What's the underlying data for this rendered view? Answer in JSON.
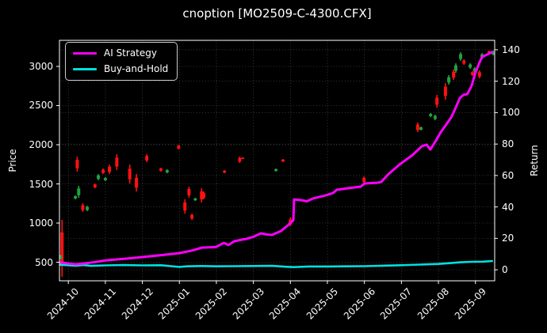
{
  "window": {
    "title": "cnoption [MO2509-C-4300.CFX]"
  },
  "legend": {
    "items": [
      {
        "label": "AI Strategy",
        "color": "#ff00ff"
      },
      {
        "label": "Buy-and-Hold",
        "color": "#00e0e0"
      }
    ]
  },
  "axes": {
    "left_label": "Price",
    "right_label": "Return",
    "price_ticks": [
      500,
      1000,
      1500,
      2000,
      2500,
      3000
    ],
    "return_ticks": [
      0,
      20,
      40,
      60,
      80,
      100,
      120,
      140
    ],
    "x_ticks": [
      "2024-10",
      "2024-11",
      "2024-12",
      "2025-01",
      "2025-02",
      "2025-03",
      "2025-04",
      "2025-05",
      "2025-06",
      "2025-07",
      "2025-08",
      "2025-09"
    ]
  },
  "chart_data": {
    "type": "line",
    "subtype": "equity-curves-with-candlestick-overlay",
    "title": "cnoption [MO2509-C-4300.CFX]",
    "xlabel": "",
    "x_unit": "months since 2024-10 (0 = 2024-10, 11 = 2025-09)",
    "x_tick_labels": [
      "2024-10",
      "2024-11",
      "2024-12",
      "2025-01",
      "2025-02",
      "2025-03",
      "2025-04",
      "2025-05",
      "2025-06",
      "2025-07",
      "2025-08",
      "2025-09"
    ],
    "x_range": [
      -0.24,
      11.52
    ],
    "left_axis": {
      "label": "Price",
      "ticks": [
        500,
        1000,
        1500,
        2000,
        2500,
        3000
      ],
      "range": [
        263,
        3333
      ]
    },
    "right_axis": {
      "label": "Return",
      "ticks": [
        0,
        20,
        40,
        60,
        80,
        100,
        120,
        140
      ],
      "range": [
        -7,
        146
      ]
    },
    "grid": true,
    "legend_position": "upper left",
    "series": [
      {
        "name": "AI Strategy",
        "axis": "right",
        "color": "#ff00ff",
        "points": [
          [
            -0.24,
            4.8
          ],
          [
            0.0,
            4.0
          ],
          [
            0.2,
            3.5
          ],
          [
            0.5,
            4.2
          ],
          [
            0.8,
            5.2
          ],
          [
            1.0,
            6.0
          ],
          [
            1.5,
            7.0
          ],
          [
            2.0,
            8.1
          ],
          [
            2.5,
            9.3
          ],
          [
            3.0,
            10.6
          ],
          [
            3.3,
            12.0
          ],
          [
            3.47,
            13.1
          ],
          [
            3.6,
            14.1
          ],
          [
            3.9,
            14.4
          ],
          [
            4.0,
            14.6
          ],
          [
            4.2,
            17.1
          ],
          [
            4.33,
            15.8
          ],
          [
            4.48,
            18.1
          ],
          [
            4.7,
            19.2
          ],
          [
            4.8,
            19.6
          ],
          [
            5.0,
            21.0
          ],
          [
            5.2,
            23.2
          ],
          [
            5.35,
            22.5
          ],
          [
            5.5,
            22.2
          ],
          [
            5.75,
            24.7
          ],
          [
            5.95,
            28.7
          ],
          [
            6.08,
            31.5
          ],
          [
            6.1,
            44.8
          ],
          [
            6.3,
            44.3
          ],
          [
            6.45,
            43.6
          ],
          [
            6.6,
            45.3
          ],
          [
            6.95,
            47.3
          ],
          [
            7.15,
            48.8
          ],
          [
            7.25,
            50.9
          ],
          [
            7.55,
            51.9
          ],
          [
            7.9,
            52.9
          ],
          [
            8.0,
            54.9
          ],
          [
            8.35,
            55.4
          ],
          [
            8.45,
            55.8
          ],
          [
            8.65,
            60.9
          ],
          [
            8.95,
            67.0
          ],
          [
            9.3,
            73.0
          ],
          [
            9.55,
            78.6
          ],
          [
            9.68,
            79.6
          ],
          [
            9.78,
            76.5
          ],
          [
            9.93,
            82.1
          ],
          [
            10.05,
            87.1
          ],
          [
            10.2,
            92.1
          ],
          [
            10.35,
            97.2
          ],
          [
            10.45,
            102.2
          ],
          [
            10.58,
            109.3
          ],
          [
            10.68,
            111.3
          ],
          [
            10.78,
            111.8
          ],
          [
            10.9,
            117.3
          ],
          [
            11.0,
            125.4
          ],
          [
            11.1,
            131.4
          ],
          [
            11.18,
            135.4
          ],
          [
            11.3,
            136.8
          ],
          [
            11.45,
            138.5
          ]
        ]
      },
      {
        "name": "Buy-and-Hold",
        "axis": "right",
        "color": "#00e0e0",
        "points": [
          [
            -0.24,
            3.2
          ],
          [
            0.2,
            2.6
          ],
          [
            0.4,
            3.0
          ],
          [
            0.6,
            2.5
          ],
          [
            1.0,
            2.8
          ],
          [
            1.5,
            3.0
          ],
          [
            2.0,
            2.8
          ],
          [
            2.5,
            2.9
          ],
          [
            3.0,
            1.8
          ],
          [
            3.2,
            2.2
          ],
          [
            3.6,
            2.4
          ],
          [
            4.0,
            2.2
          ],
          [
            4.5,
            2.3
          ],
          [
            5.0,
            2.4
          ],
          [
            5.5,
            2.5
          ],
          [
            5.9,
            1.9
          ],
          [
            6.1,
            1.7
          ],
          [
            6.5,
            2.1
          ],
          [
            7.0,
            2.1
          ],
          [
            7.5,
            2.2
          ],
          [
            8.0,
            2.3
          ],
          [
            8.5,
            2.6
          ],
          [
            9.0,
            2.9
          ],
          [
            9.5,
            3.3
          ],
          [
            10.0,
            3.7
          ],
          [
            10.3,
            4.2
          ],
          [
            10.6,
            4.8
          ],
          [
            10.9,
            5.1
          ],
          [
            11.2,
            5.2
          ],
          [
            11.45,
            5.6
          ]
        ]
      }
    ],
    "candles": {
      "axis": "left",
      "up_color": "#1fa33c",
      "down_color": "#ff1111",
      "format": "[month_index, price_low, price_high, u_or_d]",
      "items": [
        [
          -0.17,
          314,
          1041,
          "d"
        ],
        [
          -0.21,
          536,
          596,
          "u"
        ],
        [
          0.19,
          1303,
          1354,
          "u"
        ],
        [
          0.24,
          1657,
          1849,
          "d"
        ],
        [
          0.28,
          1323,
          1475,
          "u"
        ],
        [
          0.39,
          1142,
          1253,
          "d"
        ],
        [
          0.51,
          1152,
          1222,
          "u"
        ],
        [
          0.72,
          1444,
          1505,
          "d"
        ],
        [
          0.81,
          1546,
          1626,
          "u"
        ],
        [
          0.94,
          1626,
          1697,
          "d"
        ],
        [
          1.0,
          1536,
          1586,
          "u"
        ],
        [
          1.11,
          1626,
          1747,
          "d"
        ],
        [
          1.31,
          1677,
          1879,
          "d"
        ],
        [
          1.66,
          1505,
          1747,
          "d"
        ],
        [
          1.84,
          1404,
          1626,
          "d"
        ],
        [
          2.12,
          1778,
          1879,
          "d"
        ],
        [
          2.5,
          1657,
          1707,
          "d"
        ],
        [
          2.67,
          1636,
          1687,
          "u"
        ],
        [
          2.98,
          1939,
          2000,
          "d"
        ],
        [
          3.15,
          1121,
          1303,
          "d"
        ],
        [
          3.26,
          1323,
          1465,
          "d"
        ],
        [
          3.34,
          1040,
          1121,
          "d"
        ],
        [
          3.43,
          1283,
          1323,
          "u"
        ],
        [
          3.6,
          1263,
          1444,
          "d"
        ],
        [
          3.66,
          1303,
          1404,
          "d"
        ],
        [
          4.22,
          1636,
          1677,
          "d"
        ],
        [
          4.63,
          1768,
          1849,
          "d"
        ],
        [
          4.71,
          1818,
          1838,
          "d"
        ],
        [
          5.61,
          1657,
          1697,
          "u"
        ],
        [
          5.8,
          1778,
          1818,
          "d"
        ],
        [
          6.0,
          960,
          1071,
          "d"
        ],
        [
          7.99,
          1505,
          1596,
          "d"
        ],
        [
          9.44,
          2162,
          2283,
          "d"
        ],
        [
          9.53,
          2182,
          2232,
          "u"
        ],
        [
          9.79,
          2354,
          2404,
          "u"
        ],
        [
          9.91,
          2313,
          2384,
          "u"
        ],
        [
          9.96,
          2475,
          2636,
          "d"
        ],
        [
          10.19,
          2576,
          2788,
          "d"
        ],
        [
          10.28,
          2768,
          2889,
          "u"
        ],
        [
          10.41,
          2828,
          2960,
          "d"
        ],
        [
          10.47,
          2919,
          3040,
          "u"
        ],
        [
          10.6,
          3071,
          3182,
          "u"
        ],
        [
          10.69,
          3020,
          3091,
          "d"
        ],
        [
          10.86,
          2970,
          3040,
          "u"
        ],
        [
          10.92,
          2879,
          2939,
          "d"
        ],
        [
          10.98,
          2919,
          2990,
          "u"
        ],
        [
          11.11,
          2848,
          2949,
          "d"
        ],
        [
          11.18,
          3091,
          3172,
          "u"
        ],
        [
          11.37,
          3162,
          3202,
          "d"
        ],
        [
          11.48,
          3141,
          3202,
          "u"
        ]
      ]
    }
  }
}
